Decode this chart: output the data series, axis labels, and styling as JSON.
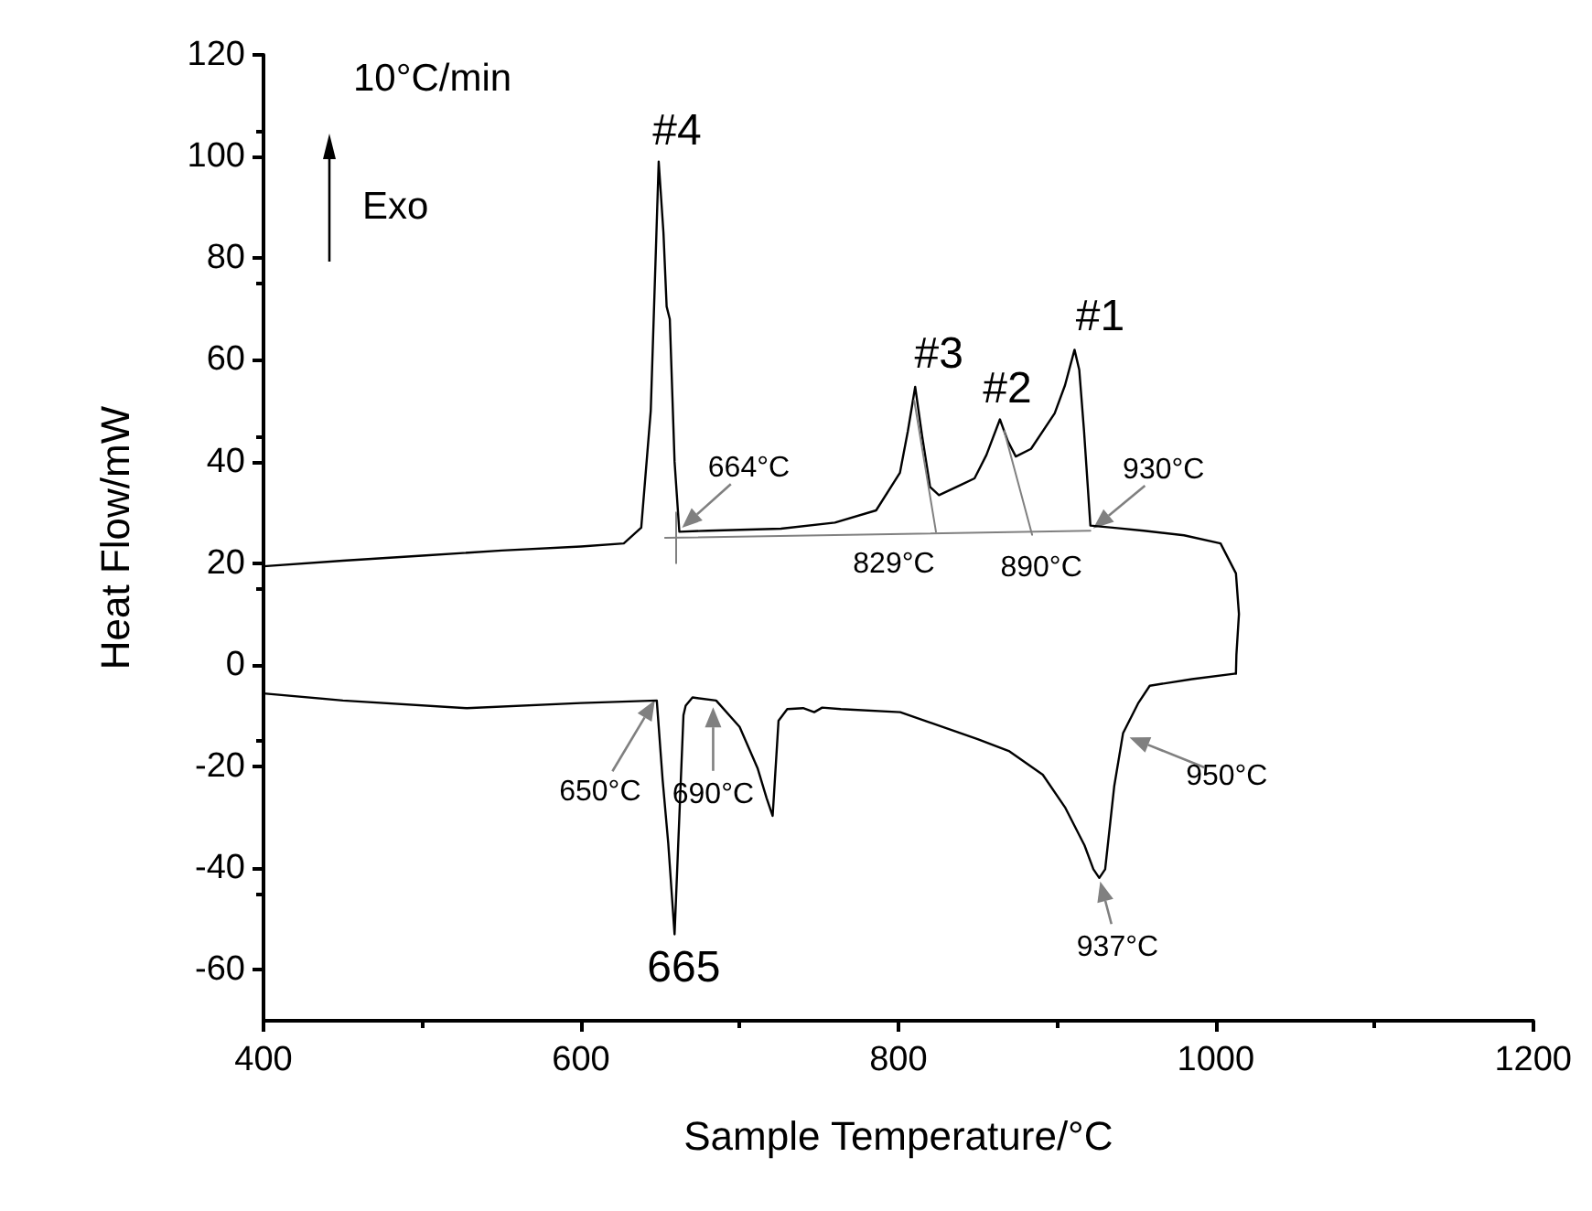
{
  "chart_data": {
    "type": "line",
    "xlabel": "Sample Temperature/°C",
    "ylabel": "Heat Flow/mW",
    "xlim": [
      400,
      1200
    ],
    "xticks": [
      400,
      600,
      800,
      1000,
      1200
    ],
    "ylim": [
      -70,
      120
    ],
    "yticks": [
      -60,
      -40,
      -20,
      0,
      20,
      40,
      60,
      80,
      100,
      120
    ],
    "grid": false,
    "marker": "none",
    "line_style": "solid",
    "series": [
      {
        "color": "#000000",
        "x": [
          400,
          450,
          500,
          550,
          600,
          627,
          638,
          644,
          649,
          652,
          654,
          656,
          659,
          662,
          680,
          726,
          760,
          786,
          801,
          806,
          810.6,
          815,
          820,
          825.6,
          840,
          848,
          855.5,
          864,
          869,
          874,
          883.6,
          898.5,
          905,
          911,
          914,
          917,
          921,
          935,
          954.7,
          980,
          1003,
          1012.7,
          1014.6,
          1013,
          1012.7
        ],
        "values": [
          19.4,
          20.5,
          21.5,
          22.5,
          23.3,
          23.9,
          27,
          50,
          99,
          85,
          70.5,
          68,
          40,
          26.2,
          26.4,
          26.8,
          28,
          30.4,
          37.8,
          46,
          54.7,
          45,
          35,
          33.4,
          35.5,
          36.7,
          41.3,
          48.3,
          44,
          41,
          42.5,
          49.5,
          55,
          62,
          58,
          46,
          27.4,
          27,
          26.4,
          25.5,
          23.9,
          18,
          10,
          2,
          -1.7
        ]
      },
      {
        "color": "#000000",
        "x": [
          1012.7,
          985,
          958.4,
          951,
          941.6,
          936,
          930.3,
          926.6,
          922.9,
          917.3,
          905,
          891,
          870,
          850,
          801.2,
          763.8,
          752,
          747,
          740,
          730,
          724.5,
          720.8,
          717,
          711.4,
          700,
          685.2,
          670.3,
          666,
          664.6,
          659,
          655,
          651.5,
          647.8,
          600,
          528,
          450,
          400
        ],
        "values": [
          -1.7,
          -2.8,
          -4.1,
          -7.6,
          -13.4,
          -23.9,
          -40.2,
          -41.9,
          -40.2,
          -35.5,
          -28,
          -21.6,
          -17,
          -14.6,
          -9.3,
          -8.7,
          -8.4,
          -9.3,
          -8.5,
          -8.7,
          -11,
          -29.7,
          -26.2,
          -20.4,
          -12.2,
          -7,
          -6.4,
          -8,
          -9.9,
          -53,
          -35,
          -22.7,
          -7,
          -7.5,
          -8.5,
          -7,
          -5.6
        ]
      },
      {
        "color": "#808080",
        "x": [
          653,
          921
        ],
        "values": [
          25,
          26.4
        ]
      },
      {
        "color": "#808080",
        "x": [
          660,
          660
        ],
        "values": [
          20,
          30
        ]
      },
      {
        "color": "#808080",
        "x": [
          810,
          823.7
        ],
        "values": [
          52,
          26.2
        ]
      },
      {
        "color": "#808080",
        "x": [
          866.7,
          884.3
        ],
        "values": [
          46,
          25.6
        ]
      }
    ],
    "annotations": [
      "10°C/min",
      "Exo",
      {
        "text": "#4",
        "x": 649,
        "y": 99
      },
      {
        "text": "#3",
        "x": 810.6,
        "y": 54.7
      },
      {
        "text": "#2",
        "x": 864,
        "y": 48.3
      },
      {
        "text": "#1",
        "x": 911,
        "y": 62
      },
      {
        "text": "664°C",
        "x": 662,
        "y": 26.5
      },
      {
        "text": "829°C",
        "x": 823.7,
        "y": 26.2
      },
      {
        "text": "890°C",
        "x": 884.3,
        "y": 25.6
      },
      {
        "text": "930°C",
        "x": 921,
        "y": 26.4
      },
      {
        "text": "650°C",
        "x": 647.8,
        "y": -6.3
      },
      {
        "text": "690°C",
        "x": 683.3,
        "y": -7.6
      },
      {
        "text": "665",
        "x": 659,
        "y": -53
      },
      {
        "text": "937°C",
        "x": 926.6,
        "y": -41.9
      },
      {
        "text": "950°C",
        "x": 943.5,
        "y": -14
      }
    ]
  }
}
